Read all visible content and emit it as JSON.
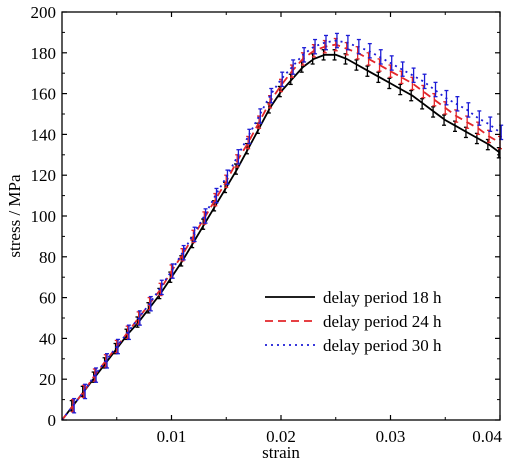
{
  "chart_data": {
    "type": "line",
    "xlabel": "strain",
    "ylabel": "stress / MPa",
    "xlim": [
      0,
      0.04
    ],
    "ylim": [
      0,
      200
    ],
    "x_ticks": [
      0.01,
      0.02,
      0.03,
      0.04
    ],
    "x_tick_labels": [
      "0.01",
      "0.02",
      "0.03",
      "0.04"
    ],
    "y_ticks": [
      0,
      20,
      40,
      60,
      80,
      100,
      120,
      140,
      160,
      180,
      200
    ],
    "y_tick_labels": [
      "0",
      "20",
      "40",
      "60",
      "80",
      "100",
      "120",
      "140",
      "160",
      "180",
      "200"
    ],
    "legend_position": "bottom-right",
    "series": [
      {
        "name": "delay period 18 h",
        "color": "#000000",
        "dash": "solid",
        "error": 2.5,
        "points": [
          [
            0,
            0
          ],
          [
            0.001,
            7
          ],
          [
            0.002,
            14
          ],
          [
            0.003,
            21
          ],
          [
            0.004,
            28
          ],
          [
            0.005,
            35
          ],
          [
            0.006,
            42
          ],
          [
            0.007,
            48
          ],
          [
            0.008,
            55
          ],
          [
            0.009,
            62
          ],
          [
            0.01,
            70
          ],
          [
            0.011,
            78
          ],
          [
            0.012,
            87
          ],
          [
            0.013,
            96
          ],
          [
            0.014,
            105
          ],
          [
            0.015,
            114
          ],
          [
            0.016,
            123
          ],
          [
            0.017,
            133
          ],
          [
            0.018,
            143
          ],
          [
            0.019,
            153
          ],
          [
            0.02,
            161
          ],
          [
            0.021,
            167
          ],
          [
            0.022,
            173
          ],
          [
            0.023,
            177
          ],
          [
            0.024,
            179
          ],
          [
            0.025,
            179
          ],
          [
            0.026,
            177
          ],
          [
            0.027,
            174
          ],
          [
            0.028,
            171
          ],
          [
            0.029,
            168
          ],
          [
            0.03,
            165
          ],
          [
            0.031,
            162
          ],
          [
            0.032,
            159
          ],
          [
            0.033,
            155
          ],
          [
            0.034,
            151
          ],
          [
            0.035,
            147
          ],
          [
            0.036,
            144
          ],
          [
            0.037,
            141
          ],
          [
            0.038,
            138
          ],
          [
            0.039,
            135
          ],
          [
            0.04,
            131
          ]
        ]
      },
      {
        "name": "delay period 24 h",
        "color": "#e3262a",
        "dash": "dashed",
        "error": 3,
        "points": [
          [
            0,
            0
          ],
          [
            0.001,
            7
          ],
          [
            0.002,
            14
          ],
          [
            0.003,
            22
          ],
          [
            0.004,
            29
          ],
          [
            0.005,
            36
          ],
          [
            0.006,
            43
          ],
          [
            0.007,
            50
          ],
          [
            0.008,
            57
          ],
          [
            0.009,
            64
          ],
          [
            0.01,
            73
          ],
          [
            0.011,
            81
          ],
          [
            0.012,
            90
          ],
          [
            0.013,
            99
          ],
          [
            0.014,
            108
          ],
          [
            0.015,
            117
          ],
          [
            0.016,
            127
          ],
          [
            0.017,
            136
          ],
          [
            0.018,
            146
          ],
          [
            0.019,
            156
          ],
          [
            0.02,
            164
          ],
          [
            0.021,
            171
          ],
          [
            0.022,
            177
          ],
          [
            0.023,
            181
          ],
          [
            0.024,
            183
          ],
          [
            0.025,
            184
          ],
          [
            0.026,
            182
          ],
          [
            0.027,
            180
          ],
          [
            0.028,
            177
          ],
          [
            0.029,
            174
          ],
          [
            0.03,
            171
          ],
          [
            0.031,
            168
          ],
          [
            0.032,
            165
          ],
          [
            0.033,
            161
          ],
          [
            0.034,
            157
          ],
          [
            0.035,
            153
          ],
          [
            0.036,
            149
          ],
          [
            0.037,
            146
          ],
          [
            0.038,
            143
          ],
          [
            0.039,
            139
          ],
          [
            0.04,
            136
          ]
        ]
      },
      {
        "name": "delay period 30 h",
        "color": "#1c1cd6",
        "dash": "dotted",
        "error": 3.5,
        "points": [
          [
            0,
            0
          ],
          [
            0.001,
            7
          ],
          [
            0.002,
            14
          ],
          [
            0.003,
            22
          ],
          [
            0.004,
            29
          ],
          [
            0.005,
            36
          ],
          [
            0.006,
            43
          ],
          [
            0.007,
            50
          ],
          [
            0.008,
            57
          ],
          [
            0.009,
            65
          ],
          [
            0.01,
            73
          ],
          [
            0.011,
            82
          ],
          [
            0.012,
            91
          ],
          [
            0.013,
            100
          ],
          [
            0.014,
            110
          ],
          [
            0.015,
            119
          ],
          [
            0.016,
            129
          ],
          [
            0.017,
            139
          ],
          [
            0.018,
            149
          ],
          [
            0.019,
            159
          ],
          [
            0.02,
            167
          ],
          [
            0.021,
            173
          ],
          [
            0.022,
            179
          ],
          [
            0.023,
            183
          ],
          [
            0.024,
            185
          ],
          [
            0.025,
            186
          ],
          [
            0.026,
            185
          ],
          [
            0.027,
            183
          ],
          [
            0.028,
            181
          ],
          [
            0.029,
            178
          ],
          [
            0.03,
            175
          ],
          [
            0.031,
            172
          ],
          [
            0.032,
            169
          ],
          [
            0.033,
            166
          ],
          [
            0.034,
            162
          ],
          [
            0.035,
            158
          ],
          [
            0.036,
            155
          ],
          [
            0.037,
            152
          ],
          [
            0.038,
            148
          ],
          [
            0.039,
            145
          ],
          [
            0.04,
            141
          ]
        ]
      }
    ]
  }
}
